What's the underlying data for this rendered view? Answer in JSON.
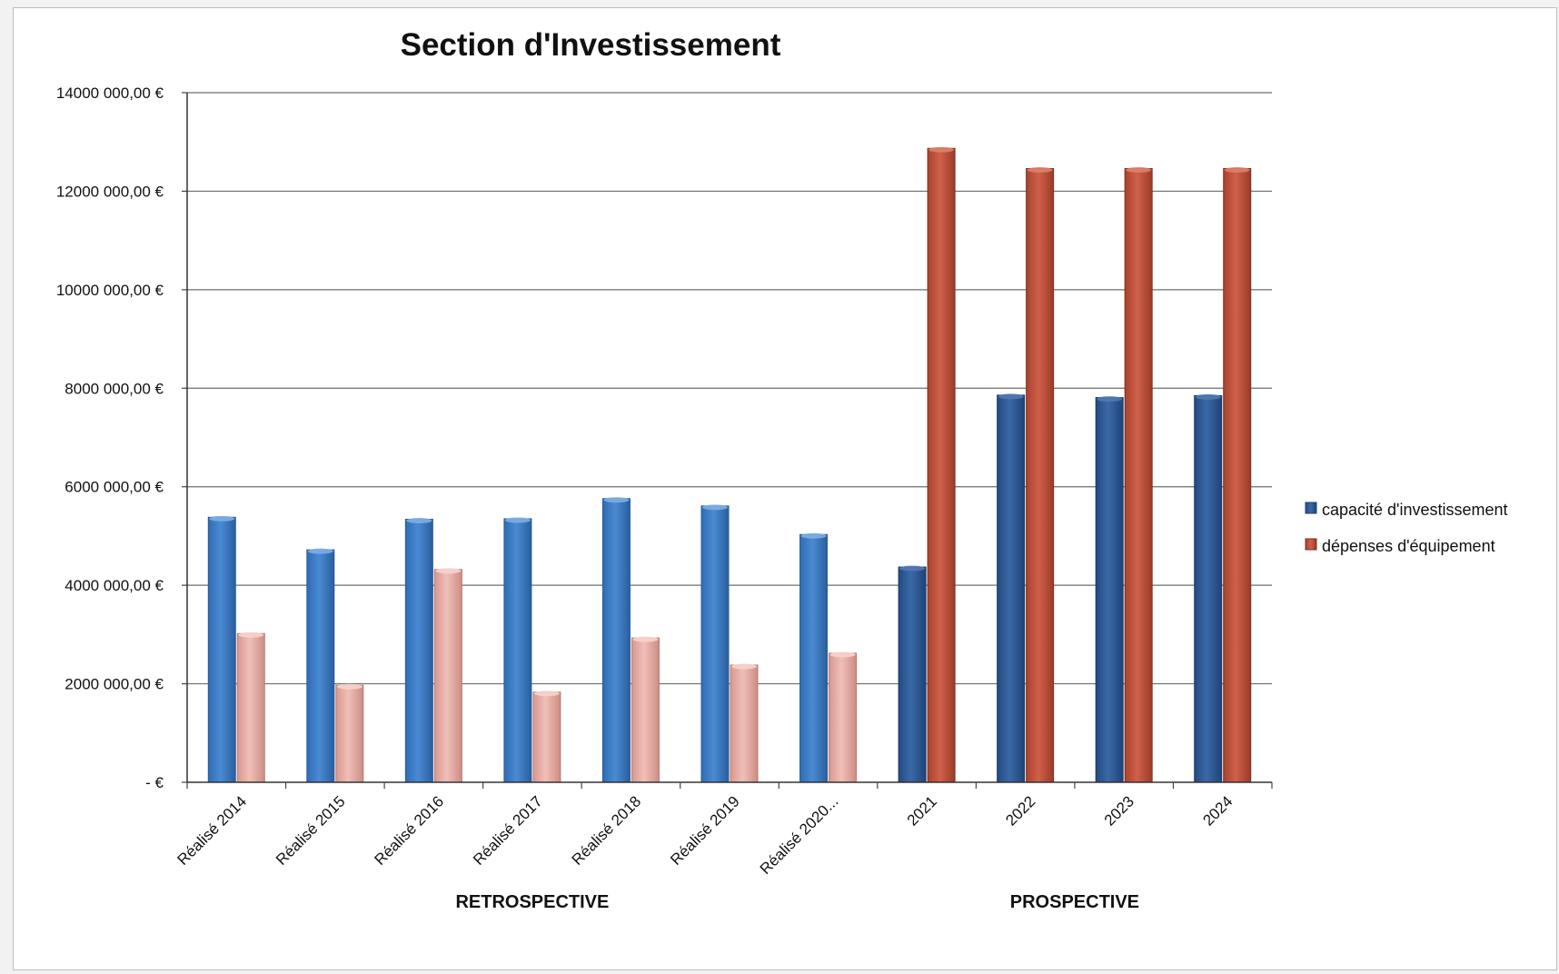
{
  "chart_data": {
    "type": "bar",
    "title": "Section d'Investissement",
    "xlabel": "",
    "ylabel": "",
    "ylim": [
      0,
      14000000
    ],
    "yticks": [
      {
        "value": 0,
        "label": "-  €"
      },
      {
        "value": 2000000,
        "label": "2000 000,00 €"
      },
      {
        "value": 4000000,
        "label": "4000 000,00 €"
      },
      {
        "value": 6000000,
        "label": "6000 000,00 €"
      },
      {
        "value": 8000000,
        "label": "8000 000,00 €"
      },
      {
        "value": 10000000,
        "label": "10000 000,00 €"
      },
      {
        "value": 12000000,
        "label": "12000 000,00 €"
      },
      {
        "value": 14000000,
        "label": "14000 000,00 €"
      }
    ],
    "categories": [
      "Réalisé 2014",
      "Réalisé 2015",
      "Réalisé 2016",
      "Réalisé 2017",
      "Réalisé 2018",
      "Réalisé 2019",
      "Réalisé 2020...",
      "2021",
      "2022",
      "2023",
      "2024"
    ],
    "series": [
      {
        "name": "capacité d'investissement",
        "values": [
          5380000,
          4720000,
          5340000,
          5350000,
          5760000,
          5610000,
          5030000,
          4370000,
          7860000,
          7810000,
          7850000
        ],
        "colors": {
          "retrospective": "#3c7cc4",
          "prospective": "#2e5c9c"
        }
      },
      {
        "name": "dépenses d'équipement",
        "values": [
          3020000,
          1970000,
          4320000,
          1830000,
          2930000,
          2380000,
          2620000,
          12870000,
          12460000,
          12460000,
          12460000
        ],
        "colors": {
          "retrospective": "#e3aaa2",
          "prospective": "#c0513a"
        }
      }
    ],
    "groups": [
      {
        "label": "RETROSPECTIVE",
        "from": 0,
        "to": 6
      },
      {
        "label": "PROSPECTIVE",
        "from": 7,
        "to": 10
      }
    ],
    "legend_position": "right",
    "grid": true
  }
}
